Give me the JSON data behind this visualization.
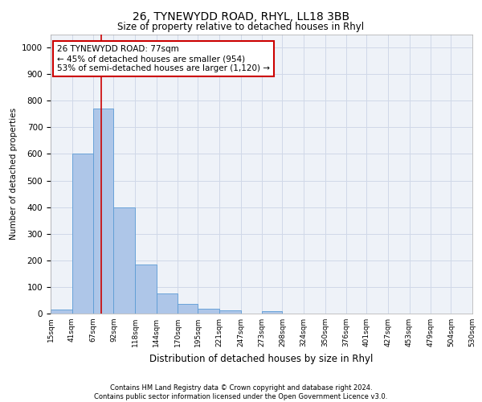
{
  "title1": "26, TYNEWYDD ROAD, RHYL, LL18 3BB",
  "title2": "Size of property relative to detached houses in Rhyl",
  "xlabel": "Distribution of detached houses by size in Rhyl",
  "ylabel": "Number of detached properties",
  "footer": "Contains HM Land Registry data © Crown copyright and database right 2024.\nContains public sector information licensed under the Open Government Licence v3.0.",
  "bin_edges": [
    15,
    41,
    67,
    92,
    118,
    144,
    170,
    195,
    221,
    247,
    273,
    298,
    324,
    350,
    376,
    401,
    427,
    453,
    479,
    504,
    530
  ],
  "bar_values": [
    15,
    600,
    770,
    400,
    185,
    75,
    37,
    18,
    12,
    0,
    10,
    0,
    0,
    0,
    0,
    0,
    0,
    0,
    0,
    0
  ],
  "bar_color": "#aec6e8",
  "bar_edge_color": "#5b9bd5",
  "grid_color": "#d0d8e8",
  "background_color": "#eef2f8",
  "ylim": [
    0,
    1050
  ],
  "yticks": [
    0,
    100,
    200,
    300,
    400,
    500,
    600,
    700,
    800,
    900,
    1000
  ],
  "annotation_text": "26 TYNEWYDD ROAD: 77sqm\n← 45% of detached houses are smaller (954)\n53% of semi-detached houses are larger (1,120) →",
  "vline_x": 77,
  "annotation_box_facecolor": "#ffffff",
  "annotation_box_edgecolor": "#cc0000"
}
